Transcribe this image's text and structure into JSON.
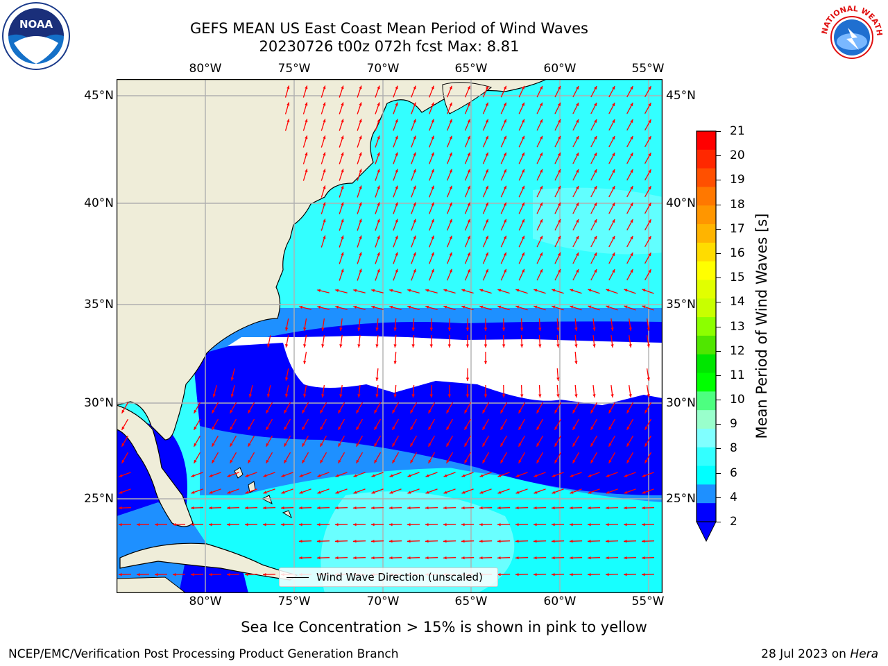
{
  "title": {
    "line1": "GEFS MEAN US East Coast Mean Period of Wind Waves",
    "line2": "20230726 t00z 072h fcst   Max: 8.81"
  },
  "logos": {
    "left": "NOAA",
    "right": "NATIONAL WEATHER SERVICE"
  },
  "map": {
    "lon_labels": [
      "80°W",
      "75°W",
      "70°W",
      "65°W",
      "60°W",
      "55°W"
    ],
    "lat_labels": [
      "45°N",
      "40°N",
      "35°N",
      "30°N",
      "25°N"
    ],
    "colors": {
      "land": "#efedd9",
      "ocean_light": "#33ffff",
      "ocean_pale": "#80ffff",
      "band_mid": "#1e90ff",
      "band_deep": "#0000ff",
      "missing": "#ffffff",
      "arrow": "#ff0000",
      "grid": "#b0b0b0"
    }
  },
  "legend": {
    "label": "Wind Wave Direction (unscaled)"
  },
  "colorbar": {
    "label": "Mean Period of Wind Waves [s]",
    "ticks": [
      "21",
      "20",
      "19",
      "18",
      "17",
      "16",
      "15",
      "14",
      "13",
      "12",
      "11",
      "10",
      "9",
      "8",
      "6",
      "4",
      "2"
    ],
    "colors": [
      "#ff0000",
      "#ff2800",
      "#ff5000",
      "#ff7800",
      "#ff9600",
      "#ffb400",
      "#ffdc00",
      "#ffff00",
      "#e1ff00",
      "#c8ff00",
      "#8cff00",
      "#50e600",
      "#00e600",
      "#00ff00",
      "#4dff80",
      "#99ffcc",
      "#80ffff",
      "#33ffff",
      "#00ffff",
      "#1e90ff",
      "#0000ff"
    ]
  },
  "note": "Sea Ice Concentration > 15% is shown in pink to yellow",
  "footer": {
    "left": "NCEP/EMC/Verification Post Processing Product Generation Branch",
    "right_date": "28 Jul 2023 on ",
    "right_machine": "Hera"
  }
}
